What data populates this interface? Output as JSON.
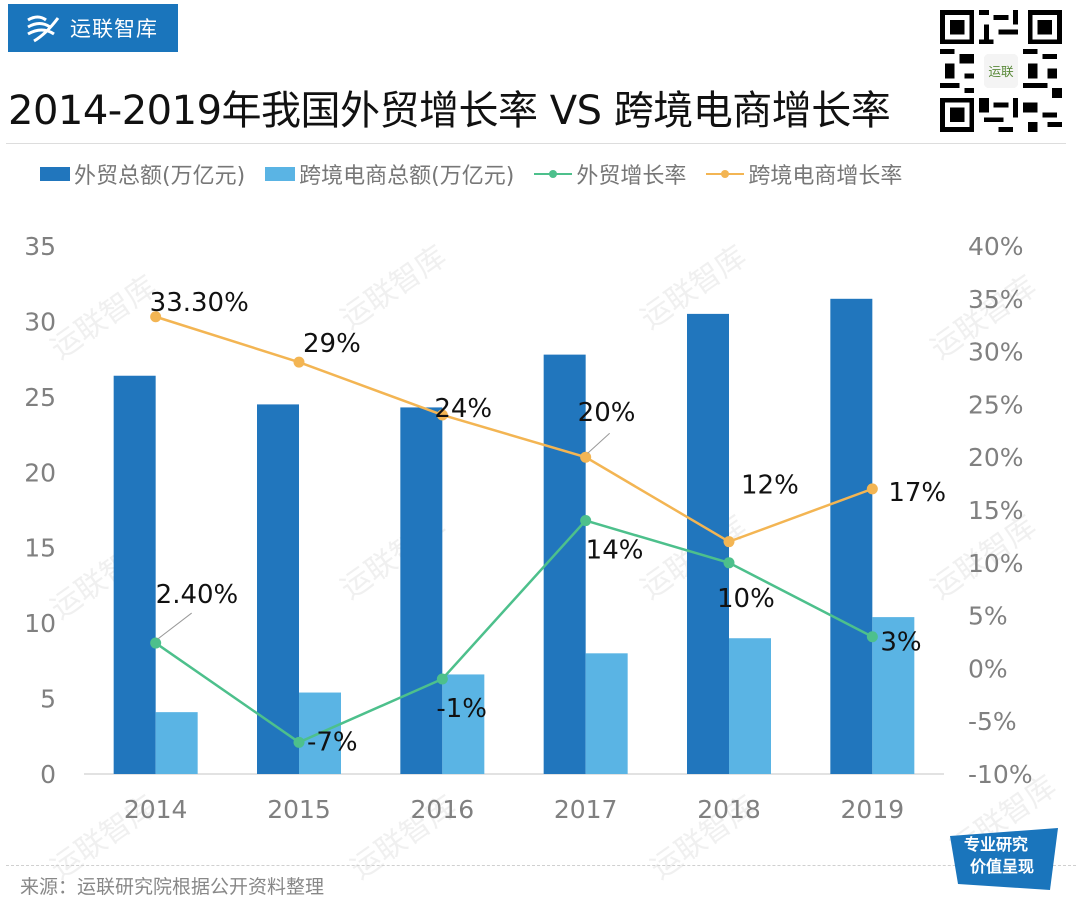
{
  "brand": {
    "name": "运联智库"
  },
  "title": "2014-2019年我国外贸增长率 VS 跨境电商增长率",
  "qr": {
    "center_label": "运联"
  },
  "watermark": "运联智库",
  "legend": [
    {
      "label": "外贸总额(万亿元)",
      "type": "bar",
      "color": "#2176bd"
    },
    {
      "label": "跨境电商总额(万亿元)",
      "type": "bar",
      "color": "#5ab4e4"
    },
    {
      "label": "外贸增长率",
      "type": "line",
      "color": "#4dc08c"
    },
    {
      "label": "跨境电商增长率",
      "type": "line",
      "color": "#f3b553"
    }
  ],
  "chart_data": {
    "type": "bar+line",
    "title": "2014-2019年我国外贸增长率 VS 跨境电商增长率",
    "categories": [
      "2014",
      "2015",
      "2016",
      "2017",
      "2018",
      "2019"
    ],
    "series": [
      {
        "name": "外贸总额(万亿元)",
        "type": "bar",
        "axis": "left",
        "color": "#2176bd",
        "values": [
          26.4,
          24.5,
          24.3,
          27.8,
          30.5,
          31.5
        ]
      },
      {
        "name": "跨境电商总额(万亿元)",
        "type": "bar",
        "axis": "left",
        "color": "#5ab4e4",
        "values": [
          4.1,
          5.4,
          6.6,
          8.0,
          9.0,
          10.4
        ]
      },
      {
        "name": "外贸增长率",
        "type": "line",
        "axis": "right",
        "color": "#4dc08c",
        "values": [
          2.4,
          -7,
          -1,
          14,
          10,
          3
        ],
        "labels": [
          "2.40%",
          "-7%",
          "-1%",
          "14%",
          "10%",
          "3%"
        ]
      },
      {
        "name": "跨境电商增长率",
        "type": "line",
        "axis": "right",
        "color": "#f3b553",
        "values": [
          33.3,
          29,
          24,
          20,
          12,
          17
        ],
        "labels": [
          "33.30%",
          "29%",
          "24%",
          "20%",
          "12%",
          "17%"
        ]
      }
    ],
    "left_axis": {
      "min": 0,
      "max": 35,
      "ticks": [
        "0",
        "5",
        "10",
        "15",
        "20",
        "25",
        "30",
        "35"
      ]
    },
    "right_axis": {
      "min": -10,
      "max": 40,
      "ticks": [
        "-10%",
        "-5%",
        "0%",
        "5%",
        "10%",
        "15%",
        "20%",
        "25%",
        "30%",
        "35%",
        "40%"
      ]
    },
    "grid": false,
    "legend_position": "top"
  },
  "footer": {
    "source": "来源：运联研究院根据公开资料整理",
    "stamp_line1": "专业研究",
    "stamp_line2": "价值呈现"
  }
}
